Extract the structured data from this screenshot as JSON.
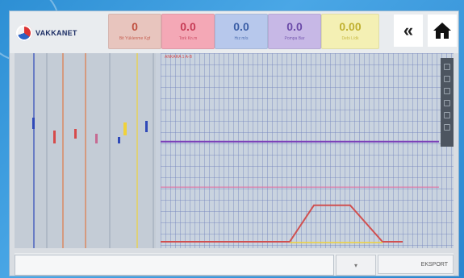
{
  "brand": {
    "name": "VAKKANET"
  },
  "tiles": [
    {
      "value": "0",
      "label": "Bit Yüklenme Kgf",
      "bg": "#e8c5be",
      "fg": "#c05040"
    },
    {
      "value": "0.0",
      "label": "Tork Kn.m",
      "bg": "#f4a8b6",
      "fg": "#c63c56"
    },
    {
      "value": "0.0",
      "label": "Hız m/s",
      "bg": "#b7c8ec",
      "fg": "#3b5ea6"
    },
    {
      "value": "0.0",
      "label": "Pompa Bar",
      "bg": "#c7b8e6",
      "fg": "#6a4aa8"
    },
    {
      "value": "0.00",
      "label": "Debi L/dk",
      "bg": "#f4f0b4",
      "fg": "#c0b030"
    }
  ],
  "buttons": {
    "collapse": "«",
    "home": "home"
  },
  "chart": {
    "title": "ANKARA 1 A-B",
    "bottom_right": "EKSPORT",
    "bottom_mid": "▾"
  },
  "chart_data": {
    "type": "line",
    "series": [
      {
        "color": "#7a3fb8",
        "values": [
          0.55,
          0.55
        ]
      },
      {
        "color": "#d05050",
        "values": [
          0,
          0,
          0.2,
          0.2,
          0
        ]
      },
      {
        "color": "#e070a0",
        "values": [
          0.3,
          0.3
        ]
      }
    ],
    "ylim": [
      0,
      1
    ]
  },
  "colors": {
    "track_blue": "#2f49b8",
    "track_orange": "#e07a46",
    "track_red": "#d64b4b",
    "track_yellow": "#f0d23a"
  }
}
